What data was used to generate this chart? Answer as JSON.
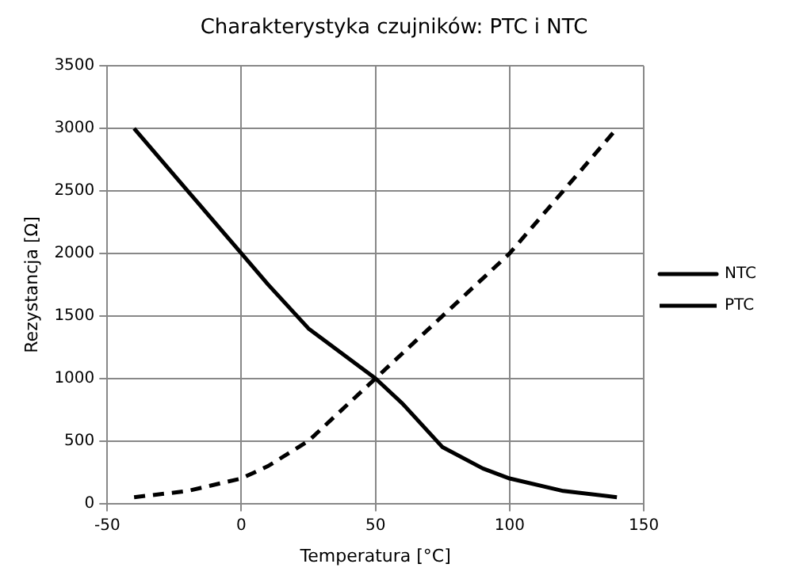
{
  "chart_data": {
    "type": "line",
    "title": "Charakterystyka czujników: PTC i NTC",
    "xlabel": "Temperatura [°C]",
    "ylabel": "Rezystancja [Ω]",
    "xlim": [
      -50,
      150
    ],
    "xticks": [
      -50,
      0,
      50,
      100,
      150
    ],
    "ylim": [
      0,
      3500
    ],
    "yticks": [
      0,
      500,
      1000,
      1500,
      2000,
      2500,
      3000,
      3500
    ],
    "grid": true,
    "legend": "right",
    "marker": "none",
    "series": [
      {
        "name": "NTC",
        "color": "#000000",
        "line_style": "solid",
        "x": [
          -40,
          -20,
          0,
          10,
          25,
          50,
          60,
          75,
          90,
          100,
          120,
          140
        ],
        "values": [
          3000,
          2500,
          2000,
          1750,
          1400,
          1000,
          800,
          450,
          280,
          200,
          100,
          50
        ]
      },
      {
        "name": "PTC",
        "color": "#000000",
        "line_style": "dashed",
        "x": [
          -40,
          -20,
          0,
          10,
          25,
          40,
          50,
          75,
          100,
          140
        ],
        "values": [
          50,
          100,
          200,
          300,
          500,
          800,
          1000,
          1500,
          2000,
          3000
        ]
      }
    ]
  }
}
